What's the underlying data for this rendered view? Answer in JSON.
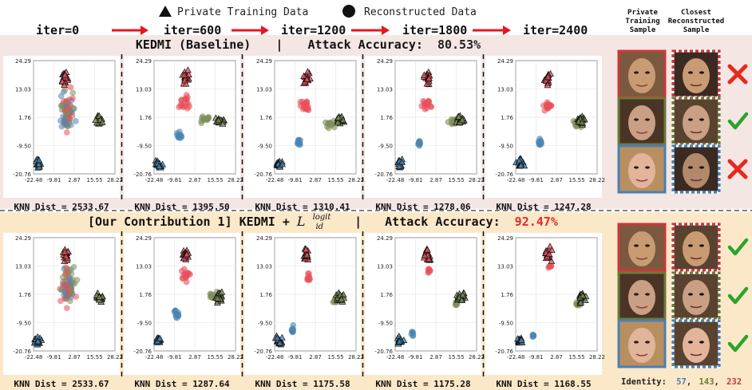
{
  "legend": {
    "triangle_label": "Private Training Data",
    "circle_label": "Reconstructed Data"
  },
  "iterations": [
    "iter=0",
    "iter=600",
    "iter=1200",
    "iter=1800",
    "iter=2400"
  ],
  "right_headers": {
    "private": [
      "Private",
      "Training",
      "Sample"
    ],
    "closest": [
      "Closest",
      "Reconstructed",
      "Sample"
    ]
  },
  "sections": [
    {
      "title_prefix": "KEDMI (Baseline)",
      "separator": "|",
      "title_suffix": "Attack Accuracy:",
      "accuracy": "80.53%",
      "accuracy_color": "#222222",
      "bg": "#f3e6e3",
      "knn": [
        "KNN Dist = 2533.67",
        "KNN Dist = 1395.50",
        "KNN Dist = 1310.41",
        "KNN Dist = 1278.06",
        "KNN Dist = 1247.28"
      ],
      "marks": [
        "cross",
        "check",
        "cross"
      ]
    },
    {
      "title_prefix": "[Our Contribution 1] KEDMI + ",
      "math_L": "L",
      "math_sub": "id",
      "math_sup": "logit",
      "separator": "|",
      "title_suffix": "Attack Accuracy:",
      "accuracy": "92.47%",
      "accuracy_color": "#e02a2a",
      "bg": "#fbe8c9",
      "knn": [
        "KNN Dist = 2533.67",
        "KNN Dist = 1287.64",
        "KNN Dist = 1175.58",
        "KNN Dist = 1175.28",
        "KNN Dist = 1168.55"
      ],
      "marks": [
        "check",
        "check",
        "check"
      ]
    }
  ],
  "axes": {
    "yticks": [
      "24.29",
      "13.03",
      "1.76",
      "-9.50",
      "-20.76"
    ],
    "xticks": [
      "-22.48",
      "-9.81",
      "2.87",
      "15.55",
      "28.22"
    ]
  },
  "identity": {
    "label": "Identity:",
    "ids": [
      "57",
      "143",
      "232"
    ],
    "colors": [
      "#4a7fb5",
      "#6b7a3a",
      "#d0353a"
    ],
    "separator": ","
  },
  "colors": {
    "red_class": "#e8505a",
    "blue_class": "#4a86b3",
    "green_class": "#7f8f5a",
    "arrow": "#e8141e",
    "check": "#2aa52a",
    "cross": "#e8281e",
    "face_border_red": "#d0353a",
    "face_border_green": "#6b7a3a",
    "face_border_blue": "#4a7fb5"
  }
}
